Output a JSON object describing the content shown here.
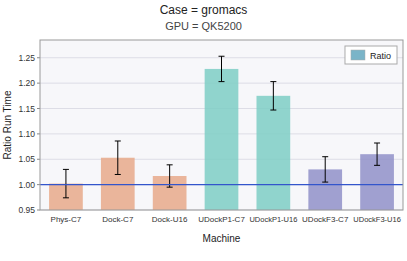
{
  "chart_data": {
    "type": "bar",
    "title": "Case = gromacs",
    "subtitle": "GPU = QK5200",
    "xlabel": "Machine",
    "ylabel": "Ratio Run Time",
    "categories": [
      "Phys-C7",
      "Dock-C7",
      "Dock-U16",
      "UDockP1-C7",
      "UDockP1-U16",
      "UDockF3-C7",
      "UDockF3-U16"
    ],
    "series": [
      {
        "name": "Ratio",
        "color": "#7ab4c8",
        "colors": [
          "#e8a98a",
          "#e8a98a",
          "#e8a98a",
          "#7ecec4",
          "#7ecec4",
          "#9090c8",
          "#9090c8"
        ],
        "values": [
          1.002,
          1.053,
          1.017,
          1.228,
          1.175,
          1.03,
          1.06
        ],
        "errors": [
          0.028,
          0.033,
          0.022,
          0.025,
          0.028,
          0.025,
          0.022
        ]
      }
    ],
    "reference_line": {
      "y": 1.0,
      "color": "#3355cc"
    },
    "ylim": [
      0.95,
      1.285
    ],
    "yticks": [
      0.95,
      {
        "value": 1.0,
        "label": "1.00"
      },
      1.05,
      {
        "value": 1.1,
        "label": "1.10"
      },
      1.15,
      {
        "value": 1.2,
        "label": "1.20"
      },
      1.25
    ],
    "grid": true,
    "legend": "upper right"
  }
}
